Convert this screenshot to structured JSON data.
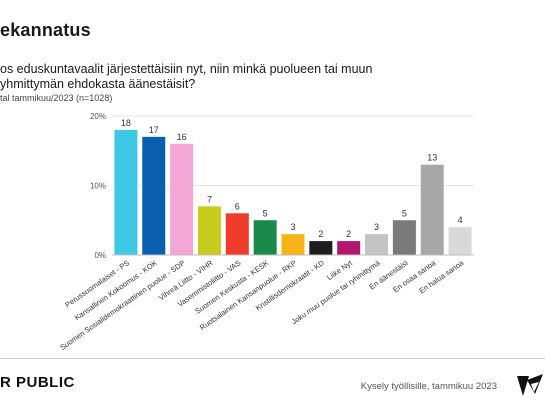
{
  "header": {
    "title": "ekannatus",
    "question_line1": "os eduskuntavaalit järjestettäisiin nyt, niin minkä puolueen tai muun",
    "question_line2": "yhmittymän ehdokasta äänestäisit?",
    "sample_note": "tal tammikuu/2023 (n=1028)"
  },
  "chart_data": {
    "type": "bar",
    "categories": [
      "Perussuomalaiset - PS",
      "Kansallinen Kokoomus - KOK",
      "Suomen Sosialidemokraattinen puolue - SDP",
      "Vihreä Liitto - VIHR",
      "Vasemmistoliitto - VAS",
      "Suomen Keskusta - KESK",
      "Ruotsalainen Kansanpuolue - RKP",
      "Kristillisdemokraatit - KD",
      "Liike Nyt",
      "Joku muu puolue tai ryhmittymä",
      "En äänestäisi",
      "En osaa sanoa",
      "En halua sanoa"
    ],
    "values": [
      18,
      17,
      16,
      7,
      6,
      5,
      3,
      2,
      2,
      3,
      5,
      13,
      4
    ],
    "data_labels": [
      "18",
      "17",
      "16",
      "7",
      "6",
      "5",
      "3",
      "2",
      "2",
      "3",
      "5",
      "13",
      "4"
    ],
    "colors": [
      "#3ec8e4",
      "#0a5fae",
      "#f4a6d6",
      "#c8cc1e",
      "#ee3b2a",
      "#1a8a4a",
      "#f6b417",
      "#1d1d1d",
      "#b0166e",
      "#c4c4c4",
      "#7a7a7a",
      "#a8a8a8",
      "#d9d9d9"
    ],
    "yticks": [
      "0%",
      "10%",
      "20%"
    ],
    "ylim": [
      0,
      20
    ],
    "grid": true
  },
  "footer": {
    "brand": "R PUBLIC",
    "source": "Kysely työllisille, tammikuu 2023"
  }
}
